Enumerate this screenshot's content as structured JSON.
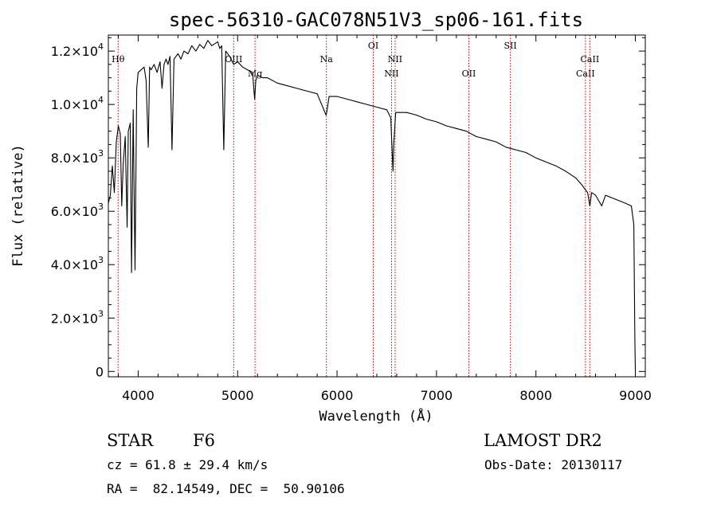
{
  "chart_data": {
    "type": "line",
    "title": "spec-56310-GAC078N51V3_sp06-161.fits",
    "xlabel": "Wavelength (Å)",
    "ylabel": "Flux (relative)",
    "xlim": [
      3700,
      9100
    ],
    "ylim": [
      -200,
      12600
    ],
    "xticks": [
      4000,
      5000,
      6000,
      7000,
      8000,
      9000
    ],
    "yticks": [
      {
        "value": 0,
        "mant": "0",
        "exp": ""
      },
      {
        "value": 2000,
        "mant": "2.0×10",
        "exp": "3"
      },
      {
        "value": 4000,
        "mant": "4.0×10",
        "exp": "3"
      },
      {
        "value": 6000,
        "mant": "6.0×10",
        "exp": "3"
      },
      {
        "value": 8000,
        "mant": "8.0×10",
        "exp": "3"
      },
      {
        "value": 10000,
        "mant": "1.0×10",
        "exp": "4"
      },
      {
        "value": 12000,
        "mant": "1.2×10",
        "exp": "4"
      }
    ],
    "spectrum": {
      "x": [
        3700,
        3720,
        3740,
        3760,
        3780,
        3800,
        3820,
        3835,
        3850,
        3870,
        3889,
        3900,
        3920,
        3933,
        3950,
        3968,
        3985,
        4000,
        4030,
        4060,
        4080,
        4101,
        4115,
        4130,
        4160,
        4190,
        4220,
        4240,
        4260,
        4280,
        4300,
        4320,
        4340,
        4360,
        4380,
        4400,
        4430,
        4460,
        4500,
        4540,
        4580,
        4620,
        4660,
        4700,
        4740,
        4780,
        4800,
        4820,
        4840,
        4861,
        4880,
        4920,
        4960,
        5000,
        5050,
        5100,
        5150,
        5167,
        5172,
        5183,
        5200,
        5250,
        5300,
        5400,
        5500,
        5600,
        5700,
        5800,
        5890,
        5896,
        5920,
        6000,
        6100,
        6200,
        6300,
        6400,
        6500,
        6540,
        6555,
        6563,
        6570,
        6590,
        6700,
        6800,
        6900,
        7000,
        7100,
        7200,
        7300,
        7400,
        7500,
        7600,
        7700,
        7800,
        7900,
        8000,
        8100,
        8200,
        8300,
        8400,
        8460,
        8498,
        8520,
        8542,
        8560,
        8600,
        8662,
        8700,
        8800,
        8900,
        8960,
        8985,
        8995,
        9000
      ],
      "y": [
        6300,
        6600,
        7700,
        6700,
        8600,
        9200,
        8900,
        6200,
        7800,
        8800,
        5400,
        9000,
        9300,
        3700,
        9800,
        3800,
        10600,
        11200,
        11300,
        11400,
        10900,
        8400,
        11400,
        11300,
        11500,
        11200,
        11600,
        10600,
        11500,
        11700,
        11500,
        11800,
        8300,
        11700,
        11800,
        11900,
        11700,
        12000,
        11900,
        12200,
        12000,
        12250,
        12100,
        12400,
        12200,
        12300,
        12350,
        12100,
        12200,
        8300,
        12000,
        11800,
        11500,
        11600,
        11400,
        11300,
        11200,
        10400,
        10200,
        10900,
        11100,
        11000,
        11000,
        10800,
        10700,
        10600,
        10500,
        10400,
        9600,
        9700,
        10300,
        10300,
        10200,
        10100,
        10000,
        9900,
        9800,
        9500,
        8200,
        7500,
        8500,
        9700,
        9700,
        9600,
        9450,
        9350,
        9200,
        9100,
        9000,
        8800,
        8700,
        8600,
        8400,
        8300,
        8200,
        8000,
        7850,
        7700,
        7500,
        7250,
        7000,
        6800,
        6700,
        6200,
        6700,
        6600,
        6200,
        6600,
        6450,
        6300,
        6200,
        5500,
        1200,
        0
      ]
    },
    "lines": [
      {
        "label": "Hθ",
        "wavelength": 3798,
        "row": "high"
      },
      {
        "label": "OIII",
        "wavelength": 4960,
        "row": "high"
      },
      {
        "label": "Mg",
        "wavelength": 5175,
        "row": "mid"
      },
      {
        "label": "Na",
        "wavelength": 5893,
        "row": "high"
      },
      {
        "label": "OI",
        "wavelength": 6364,
        "row": "top"
      },
      {
        "label": "NII",
        "wavelength": 6548,
        "row": "mid"
      },
      {
        "label": "NII",
        "wavelength": 6584,
        "row": "high"
      },
      {
        "label": "OII",
        "wavelength": 7325,
        "row": "mid"
      },
      {
        "label": "SII",
        "wavelength": 7743,
        "row": "top"
      },
      {
        "label": "CaII",
        "wavelength": 8498,
        "row": "mid"
      },
      {
        "label": "CaII",
        "wavelength": 8542,
        "row": "high"
      }
    ]
  },
  "info": {
    "class": "STAR",
    "subclass": "F6",
    "survey": "LAMOST DR2",
    "redshift": "cz = 61.8 ± 29.4 km/s",
    "obs_date": "Obs-Date: 20130117",
    "coords": "RA =  82.14549, DEC =  50.90106"
  },
  "colors": {
    "spectrum": "#000000",
    "line_marker": "#c00000",
    "axis": "#000000"
  }
}
